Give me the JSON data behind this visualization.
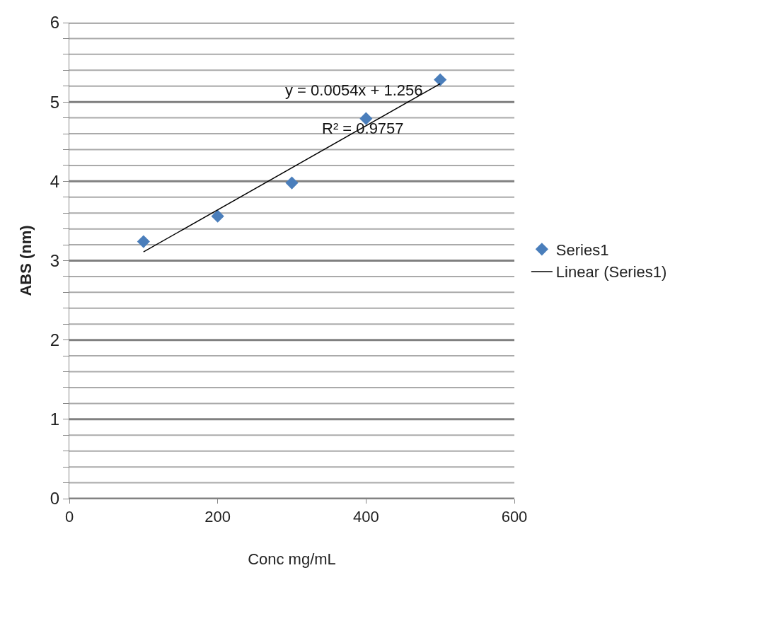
{
  "chart_data": {
    "type": "scatter",
    "xlabel": "Conc mg/mL",
    "ylabel": "ABS (nm)",
    "series": [
      {
        "name": "Series1",
        "marker": "diamond",
        "color": "#4a7ebb",
        "x": [
          100,
          200,
          300,
          400,
          500
        ],
        "values": [
          3.24,
          3.56,
          3.98,
          4.79,
          5.28
        ]
      },
      {
        "name": "Linear (Series1)",
        "type": "line",
        "marker": "none",
        "line_style": "solid",
        "color": "#000000",
        "x": [
          100,
          500
        ],
        "values": [
          3.11,
          5.23
        ]
      }
    ],
    "annotations": [
      "y = 0.0054x + 1.256",
      "R² = 0.9757"
    ],
    "xlim": [
      0,
      600
    ],
    "xticks": [
      0,
      200,
      400,
      600
    ],
    "ylim": [
      0,
      6
    ],
    "yticks": [
      0,
      {
        "value": 0.2,
        "label": null
      },
      {
        "value": 0.4,
        "label": null
      },
      {
        "value": 0.6,
        "label": null
      },
      {
        "value": 0.8,
        "label": null
      },
      1,
      {
        "value": 1.2,
        "label": null
      },
      {
        "value": 1.4,
        "label": null
      },
      {
        "value": 1.6,
        "label": null
      },
      {
        "value": 1.8,
        "label": null
      },
      2,
      {
        "value": 2.2,
        "label": null
      },
      {
        "value": 2.4,
        "label": null
      },
      {
        "value": 2.6,
        "label": null
      },
      {
        "value": 2.8,
        "label": null
      },
      3,
      {
        "value": 3.2,
        "label": null
      },
      {
        "value": 3.4,
        "label": null
      },
      {
        "value": 3.6,
        "label": null
      },
      {
        "value": 3.8,
        "label": null
      },
      4,
      {
        "value": 4.2,
        "label": null
      },
      {
        "value": 4.4,
        "label": null
      },
      {
        "value": 4.6,
        "label": null
      },
      {
        "value": 4.8,
        "label": null
      },
      5,
      {
        "value": 5.2,
        "label": null
      },
      {
        "value": 5.4,
        "label": null
      },
      {
        "value": 5.6,
        "label": null
      },
      {
        "value": 5.8,
        "label": null
      },
      6
    ],
    "grid": "y",
    "legend": "right"
  }
}
